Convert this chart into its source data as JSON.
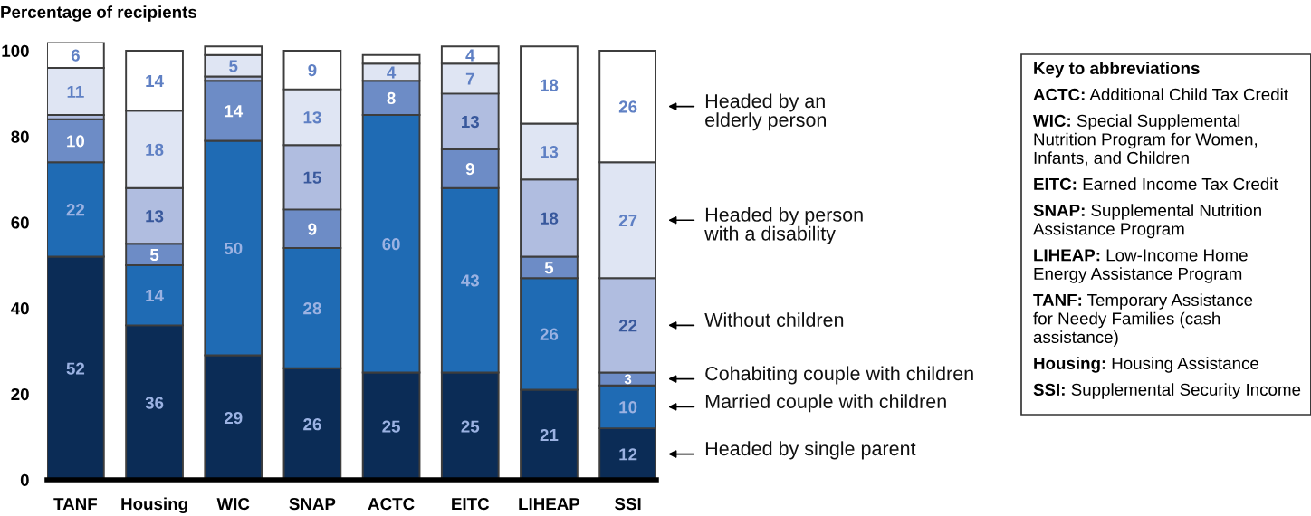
{
  "chart_data": {
    "type": "bar",
    "stacked": true,
    "ylabel": "Percentage of recipients",
    "categories": [
      "TANF",
      "Housing",
      "WIC",
      "SNAP",
      "ACTC",
      "EITC",
      "LIHEAP",
      "SSI"
    ],
    "ylim": [
      0,
      102
    ],
    "yticks": [
      0,
      20,
      40,
      60,
      80,
      100
    ],
    "series": [
      {
        "name": "Headed by single parent",
        "color": "#0b2c56",
        "values": [
          52,
          36,
          29,
          26,
          25,
          25,
          21,
          12
        ],
        "value_labels": [
          "52",
          "36",
          "29",
          "26",
          "25",
          "25",
          "21",
          "12"
        ]
      },
      {
        "name": "Married couple with children",
        "color": "#1f6bb4",
        "values": [
          22,
          14,
          50,
          28,
          60,
          43,
          26,
          10
        ],
        "value_labels": [
          "22",
          "14",
          "50",
          "28",
          "60",
          "43",
          "26",
          "10"
        ]
      },
      {
        "name": "Cohabiting couple with children",
        "color": "#6d8cc6",
        "values": [
          10,
          5,
          14,
          9,
          8,
          9,
          5,
          3
        ],
        "value_labels": [
          "10",
          "5",
          "14",
          "9",
          "8",
          "9",
          "5",
          "3"
        ]
      },
      {
        "name": "Without children",
        "color": "#b0bde0",
        "values": [
          1,
          13,
          1,
          15,
          null,
          13,
          18,
          22
        ],
        "value_labels": [
          null,
          "13",
          null,
          "15",
          null,
          "13",
          "18",
          "22"
        ]
      },
      {
        "name": "Headed by person\nwith a disability",
        "color": "#dfe5f3",
        "values": [
          11,
          18,
          5,
          13,
          4,
          7,
          13,
          27
        ],
        "value_labels": [
          "11",
          "18",
          "5",
          "13",
          "4",
          "7",
          "13",
          "27"
        ]
      },
      {
        "name": "Headed by an\nelderly person",
        "color": "#ffffff",
        "values": [
          6,
          14,
          2,
          9,
          2,
          4,
          18,
          26
        ],
        "value_labels": [
          "6",
          "14",
          null,
          "9",
          null,
          "4",
          "18",
          "26"
        ]
      }
    ],
    "annotations": [
      "Key to abbreviations",
      "ACTC: Additional Child Tax Credit",
      "WIC: Special Supplemental\nNutrition Program for Women,\nInfants, and Children",
      "EITC: Earned Income Tax Credit",
      "SNAP: Supplemental Nutrition\nAssistance Program",
      "LIHEAP: Low-Income Home\nEnergy Assistance Program",
      "TANF: Temporary Assistance\nfor Needy Families (cash\nassistance)",
      "Housing: Housing Assistance",
      "SSI: Supplemental Security Income"
    ]
  }
}
